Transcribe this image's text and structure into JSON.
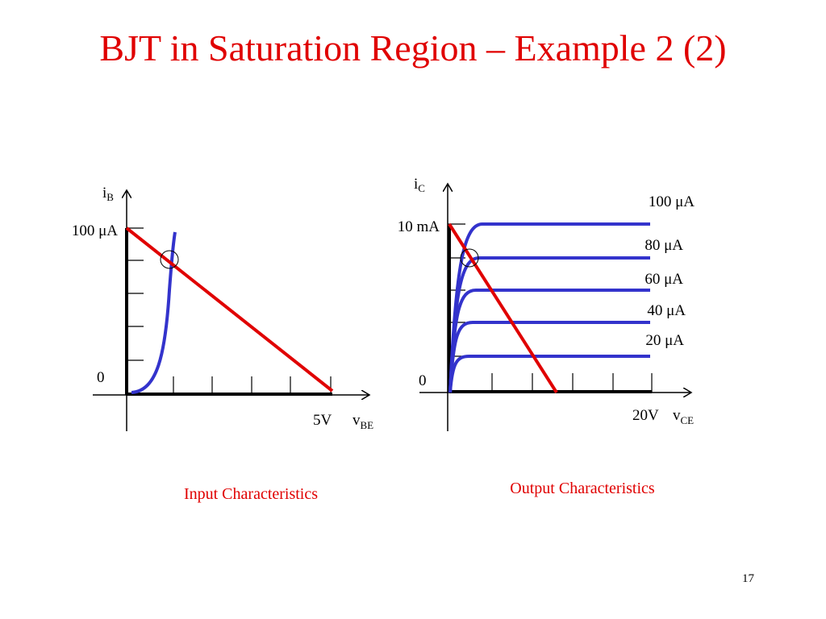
{
  "title": "BJT in Saturation Region – Example 2 (2)",
  "input_plot": {
    "y_axis": {
      "symbol": "i",
      "subscript": "B"
    },
    "y_max_label": "100 μA",
    "origin_label": "0",
    "x_max_label": "5V",
    "x_axis": {
      "symbol": "v",
      "subscript": "BE"
    },
    "caption": "Input Characteristics"
  },
  "output_plot": {
    "y_axis": {
      "symbol": "i",
      "subscript": "C"
    },
    "y_max_label": "10 mA",
    "origin_label": "0",
    "x_max_label": "20V",
    "x_axis": {
      "symbol": "v",
      "subscript": "CE"
    },
    "curve_labels": [
      "100 μA",
      "80 μA",
      "60 μA",
      "40 μA",
      "20 μA"
    ],
    "caption": "Output Characteristics"
  },
  "page_number": "17"
}
